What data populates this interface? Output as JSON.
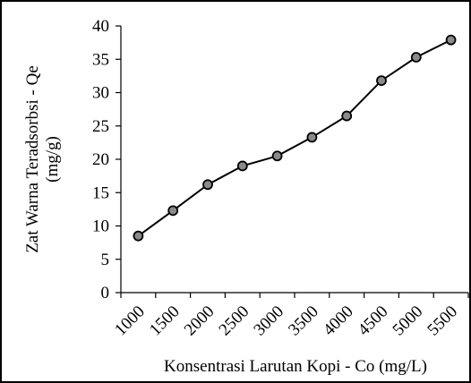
{
  "chart_data": {
    "type": "line",
    "title": "",
    "xlabel": "Konsentrasi Larutan Kopi - Co (mg/L)",
    "ylabel_line1": "Zat Warna Teradsorbsi - Qe",
    "ylabel_line2": "(mg/g)",
    "categories": [
      "1000",
      "1500",
      "2000",
      "2500",
      "3000",
      "3500",
      "4000",
      "4500",
      "5000",
      "5500"
    ],
    "series": [
      {
        "values": [
          8.5,
          12.3,
          16.2,
          19.0,
          20.5,
          23.3,
          26.5,
          31.8,
          35.3,
          37.9
        ]
      }
    ],
    "yticks": [
      "0",
      "5",
      "10",
      "15",
      "20",
      "25",
      "30",
      "35",
      "40"
    ],
    "ylim": [
      0,
      40
    ],
    "grid": false,
    "legend": "none",
    "line_color": "#000000",
    "marker_fill": "#8a8a8a"
  }
}
